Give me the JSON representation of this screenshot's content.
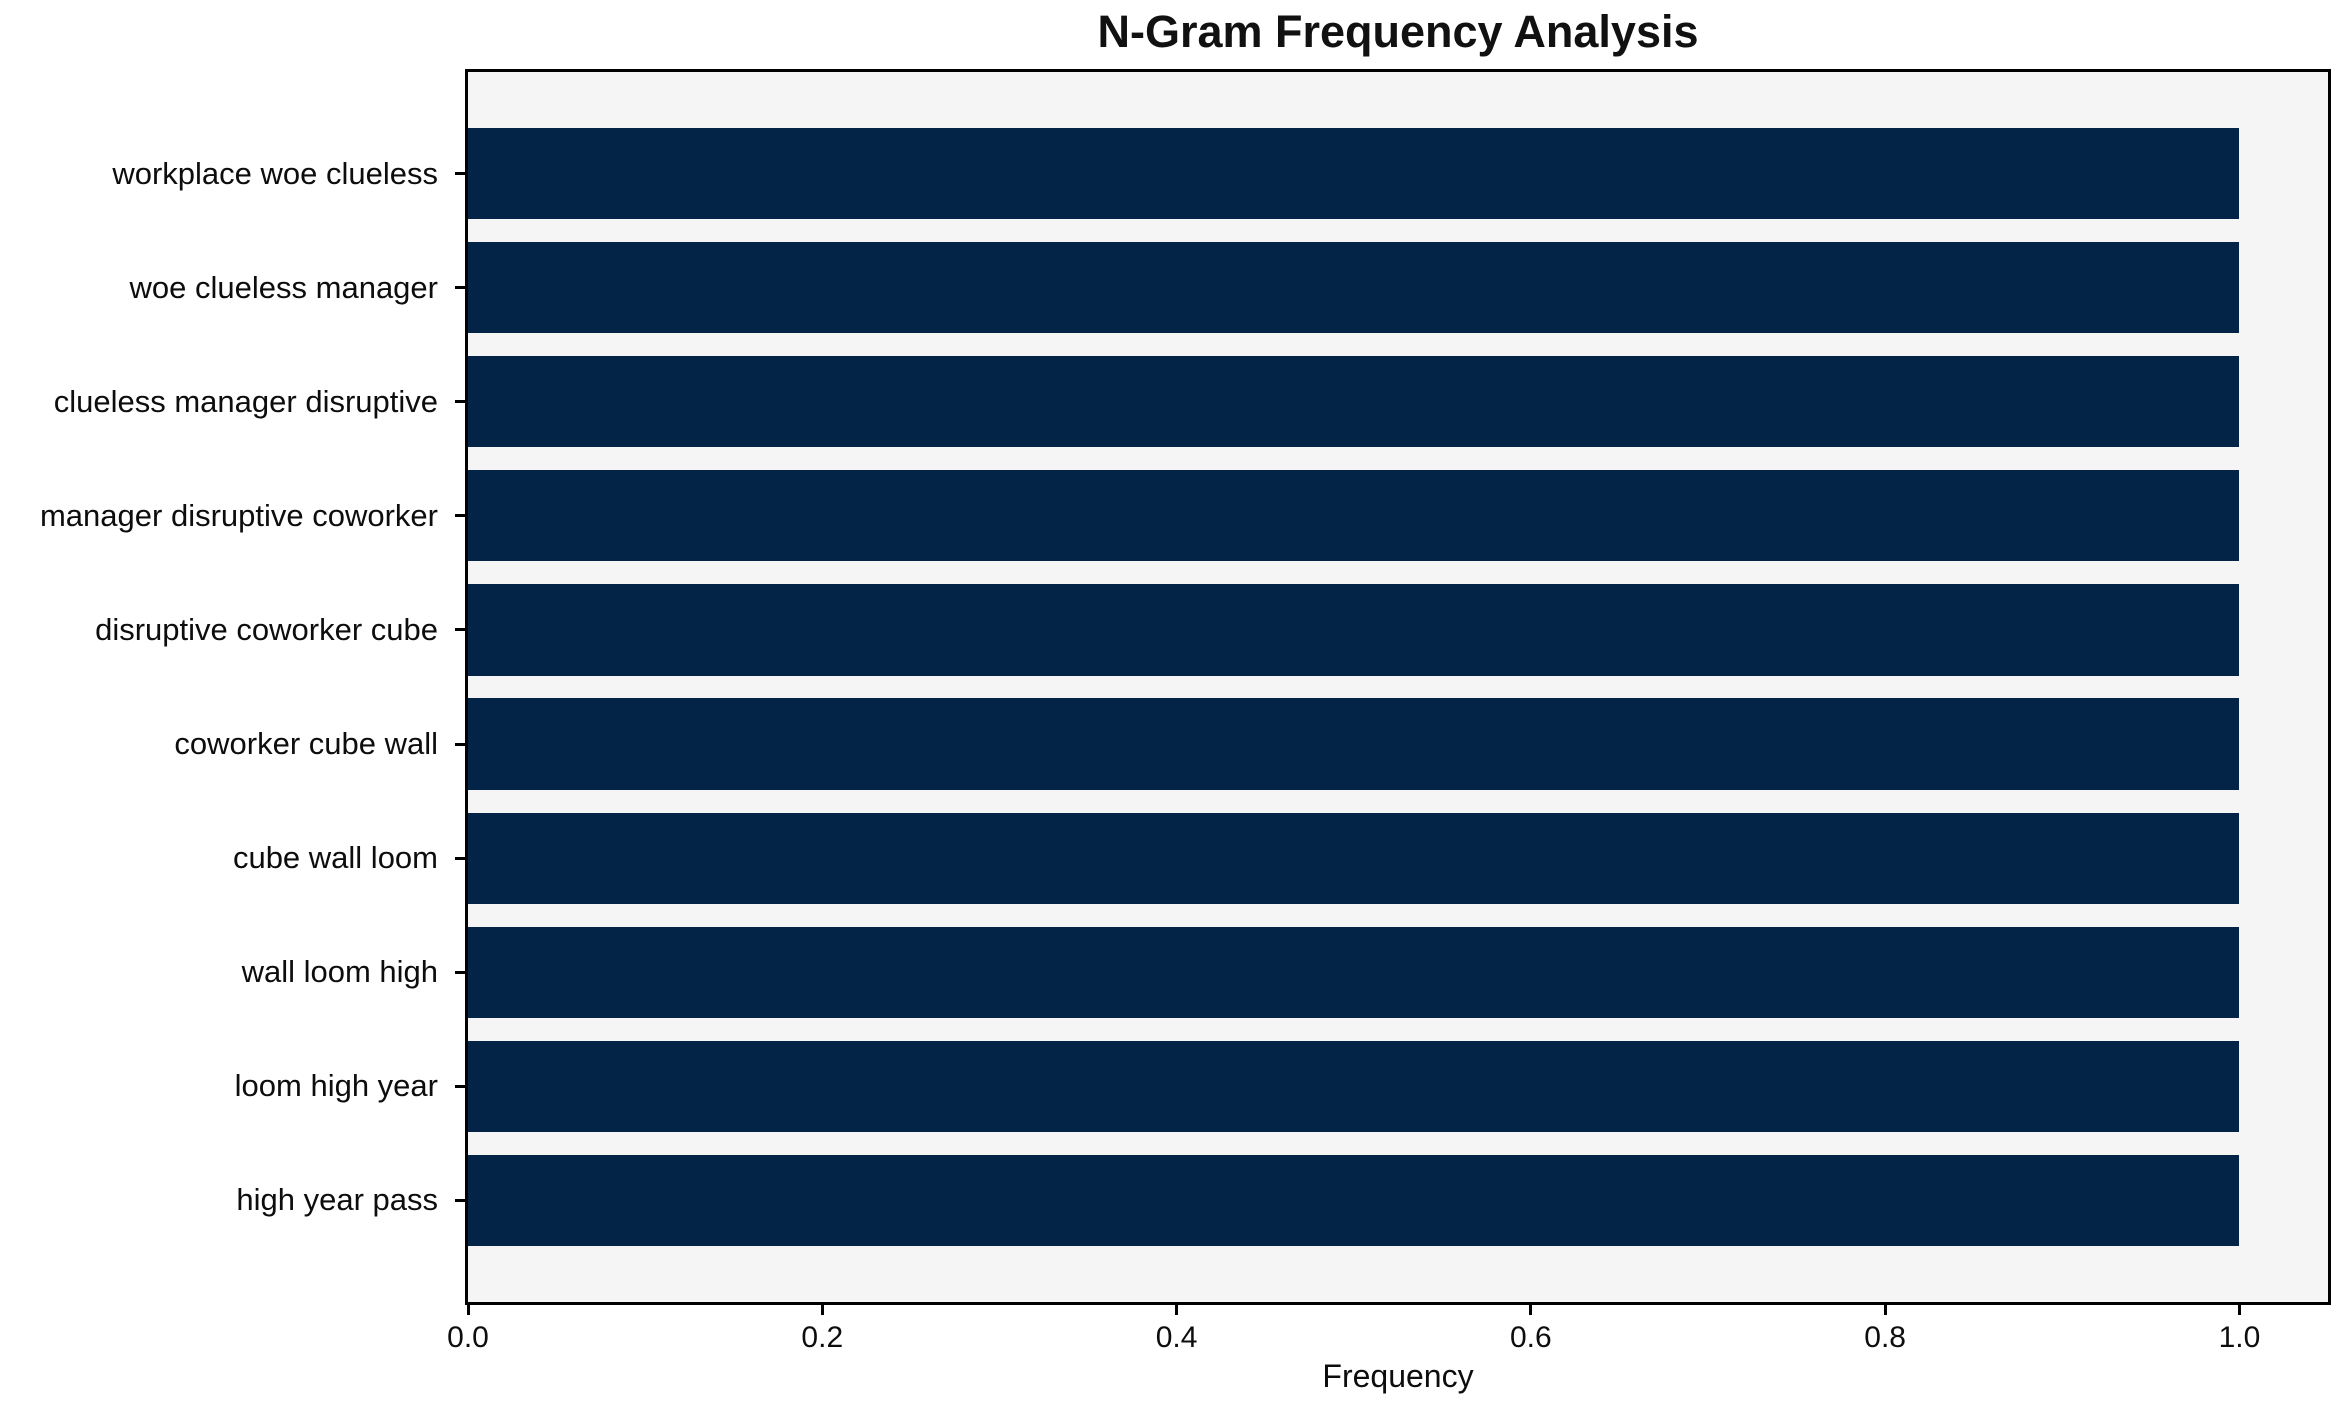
{
  "chart_data": {
    "type": "bar",
    "orientation": "horizontal",
    "title": "N-Gram Frequency Analysis",
    "xlabel": "Frequency",
    "ylabel": "",
    "categories": [
      "workplace woe clueless",
      "woe clueless manager",
      "clueless manager disruptive",
      "manager disruptive coworker",
      "disruptive coworker cube",
      "coworker cube wall",
      "cube wall loom",
      "wall loom high",
      "loom high year",
      "high year pass"
    ],
    "values": [
      1.0,
      1.0,
      1.0,
      1.0,
      1.0,
      1.0,
      1.0,
      1.0,
      1.0,
      1.0
    ],
    "x_ticks": [
      "0.0",
      "0.2",
      "0.4",
      "0.6",
      "0.8",
      "1.0"
    ],
    "xlim": [
      0,
      1.05
    ],
    "grid": false,
    "legend": null,
    "bar_color": "#042447",
    "plot_bg": "#f5f5f5",
    "frame_color": "#000000"
  }
}
